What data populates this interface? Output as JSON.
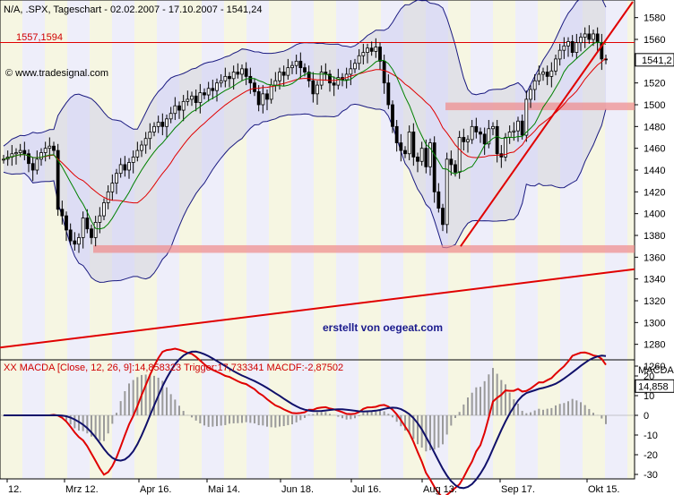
{
  "header": {
    "title": "N/A, .SPX, Tageschart - 02.02.2007 - 17.10.2007 - 1541,24",
    "watermark": "© www.tradesignal.com",
    "credit": "erstellt von oegeat.com"
  },
  "chart_data": [
    {
      "type": "candlestick",
      "title": "N/A, .SPX, Tageschart - 02.02.2007 - 17.10.2007 - 1541,24",
      "symbol": ".SPX",
      "timeframe": "Tageschart",
      "date_range": [
        "02.02.2007",
        "17.10.2007"
      ],
      "last_value": 1541.24,
      "last_value_label": "1541,2",
      "x_tick_labels": [
        "12.",
        "Mrz 12.",
        "Apr 16.",
        "Mai 14.",
        "Jun 18.",
        "Jul 16.",
        "Aug 13.",
        "Sep 17.",
        "Okt 15."
      ],
      "y_ticks": [
        1260,
        1280,
        1300,
        1320,
        1340,
        1360,
        1380,
        1400,
        1420,
        1440,
        1460,
        1480,
        1500,
        1520,
        1540,
        1560,
        1580
      ],
      "ylim": [
        1250,
        1600
      ],
      "grid": false,
      "reference_lines": [
        {
          "label": "1557,1594",
          "value": 1557.1594,
          "color": "#e00000"
        }
      ],
      "support_zones": [
        {
          "low": 1364,
          "high": 1371
        },
        {
          "low": 1495,
          "high": 1502
        }
      ],
      "trendlines": [
        {
          "name": "long-term uptrend",
          "from": {
            "date": "2007-02-02",
            "value": 1277
          },
          "to": {
            "date": "2007-10-17",
            "value": 1349
          }
        },
        {
          "name": "short-term uptrend",
          "from": {
            "date": "2007-08-16",
            "value": 1370
          },
          "to": {
            "date": "2007-10-17",
            "value": 1600
          }
        }
      ],
      "indicators": [
        "Bollinger Bands",
        "Moving Average (green)",
        "Moving Average (red)"
      ],
      "closes": [
        1450,
        1452,
        1455,
        1456,
        1458,
        1455,
        1446,
        1440,
        1450,
        1456,
        1460,
        1462,
        1458,
        1404,
        1398,
        1385,
        1375,
        1372,
        1378,
        1396,
        1386,
        1378,
        1392,
        1398,
        1410,
        1420,
        1428,
        1437,
        1445,
        1440,
        1447,
        1452,
        1458,
        1463,
        1469,
        1475,
        1480,
        1484,
        1480,
        1487,
        1492,
        1499,
        1495,
        1503,
        1505,
        1508,
        1502,
        1511,
        1509,
        1515,
        1513,
        1520,
        1522,
        1526,
        1524,
        1530,
        1528,
        1533,
        1526,
        1520,
        1512,
        1500,
        1510,
        1505,
        1518,
        1522,
        1530,
        1527,
        1534,
        1536,
        1540,
        1534,
        1530,
        1522,
        1510,
        1518,
        1530,
        1528,
        1520,
        1518,
        1525,
        1523,
        1528,
        1533,
        1538,
        1545,
        1548,
        1552,
        1549,
        1553,
        1540,
        1520,
        1500,
        1480,
        1465,
        1458,
        1455,
        1475,
        1452,
        1448,
        1460,
        1443,
        1465,
        1420,
        1405,
        1390,
        1450,
        1445,
        1438,
        1470,
        1466,
        1468,
        1480,
        1475,
        1473,
        1464,
        1478,
        1480,
        1455,
        1452,
        1470,
        1475,
        1476,
        1485,
        1472,
        1505,
        1514,
        1522,
        1528,
        1530,
        1526,
        1531,
        1542,
        1550,
        1554,
        1558,
        1548,
        1557,
        1562,
        1565,
        1560,
        1565,
        1557,
        1542,
        1541.24
      ],
      "macd_panel": {
        "title": "XX MACDA [Close, 12, 26, 9]:14,858323  Trigger:17,733341  MACDF:-2,87502",
        "label": "MACDA",
        "macd": 14.858323,
        "trigger": 17.733341,
        "macdf": -2.87502,
        "last_value_label": "14,858",
        "y_ticks": [
          -30,
          -20,
          -10,
          0,
          10,
          20
        ],
        "ylim": [
          -33,
          27
        ]
      }
    }
  ]
}
